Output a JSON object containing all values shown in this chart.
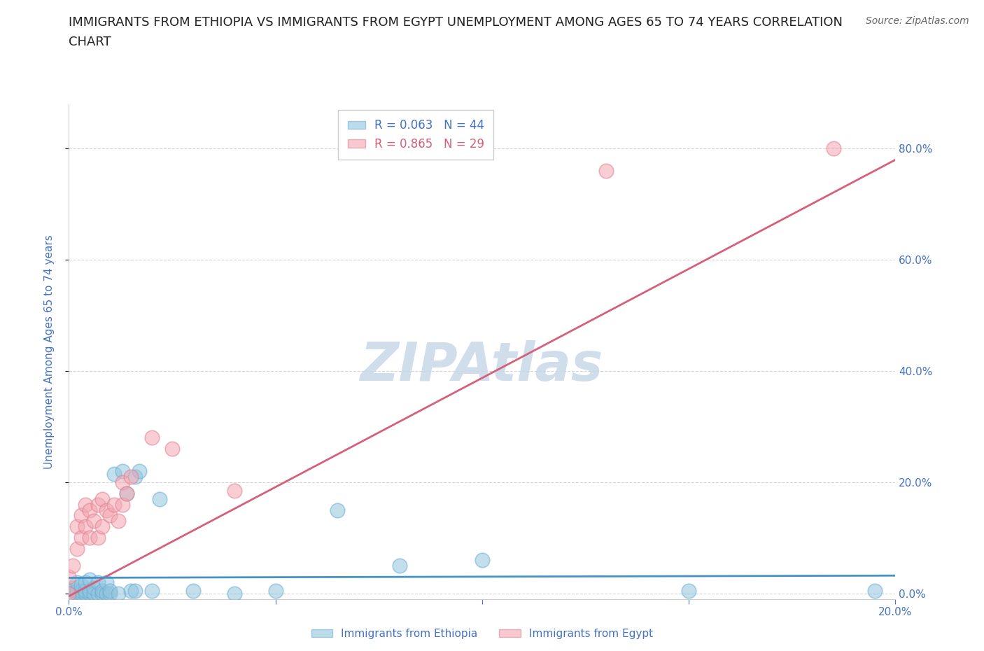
{
  "title_line1": "IMMIGRANTS FROM ETHIOPIA VS IMMIGRANTS FROM EGYPT UNEMPLOYMENT AMONG AGES 65 TO 74 YEARS CORRELATION",
  "title_line2": "CHART",
  "source_text": "Source: ZipAtlas.com",
  "ylabel": "Unemployment Among Ages 65 to 74 years",
  "xmin": 0.0,
  "xmax": 0.2,
  "ymin": -0.01,
  "ymax": 0.88,
  "ethiopia_color": "#92c5de",
  "ethiopia_edge": "#6baed6",
  "ethiopia_line_color": "#4393c3",
  "egypt_color": "#f4a6b2",
  "egypt_edge": "#e08090",
  "egypt_line_color": "#d6607a",
  "ethiopia_R": 0.063,
  "ethiopia_N": 44,
  "egypt_R": 0.865,
  "egypt_N": 29,
  "watermark": "ZIPAtlas",
  "watermark_color": "#c8d8e8",
  "bg_color": "#ffffff",
  "axis_color": "#4472c4",
  "title_fontsize": 13,
  "label_fontsize": 11,
  "tick_fontsize": 11,
  "ethiopia_x": [
    0.0,
    0.0,
    0.001,
    0.001,
    0.002,
    0.002,
    0.002,
    0.003,
    0.003,
    0.003,
    0.004,
    0.004,
    0.004,
    0.005,
    0.005,
    0.005,
    0.006,
    0.006,
    0.007,
    0.007,
    0.008,
    0.008,
    0.009,
    0.009,
    0.01,
    0.01,
    0.011,
    0.012,
    0.013,
    0.014,
    0.015,
    0.016,
    0.016,
    0.017,
    0.02,
    0.022,
    0.03,
    0.04,
    0.05,
    0.065,
    0.08,
    0.1,
    0.15,
    0.195
  ],
  "ethiopia_y": [
    0.0,
    0.005,
    0.0,
    0.01,
    0.0,
    0.005,
    0.02,
    0.0,
    0.005,
    0.015,
    0.0,
    0.005,
    0.02,
    0.0,
    0.005,
    0.025,
    0.0,
    0.01,
    0.0,
    0.02,
    0.0,
    0.005,
    0.0,
    0.02,
    0.0,
    0.005,
    0.215,
    0.0,
    0.22,
    0.18,
    0.005,
    0.005,
    0.21,
    0.22,
    0.005,
    0.17,
    0.005,
    0.0,
    0.005,
    0.15,
    0.05,
    0.06,
    0.005,
    0.005
  ],
  "egypt_x": [
    0.0,
    0.0,
    0.001,
    0.002,
    0.002,
    0.003,
    0.003,
    0.004,
    0.004,
    0.005,
    0.005,
    0.006,
    0.007,
    0.007,
    0.008,
    0.008,
    0.009,
    0.01,
    0.011,
    0.012,
    0.013,
    0.013,
    0.014,
    0.015,
    0.02,
    0.025,
    0.04,
    0.13,
    0.185
  ],
  "egypt_y": [
    0.0,
    0.03,
    0.05,
    0.08,
    0.12,
    0.1,
    0.14,
    0.12,
    0.16,
    0.1,
    0.15,
    0.13,
    0.1,
    0.16,
    0.12,
    0.17,
    0.15,
    0.14,
    0.16,
    0.13,
    0.16,
    0.2,
    0.18,
    0.21,
    0.28,
    0.26,
    0.185,
    0.76,
    0.8
  ],
  "egypt_line_x0": 0.0,
  "egypt_line_y0": -0.005,
  "egypt_line_x1": 0.2,
  "egypt_line_y1": 0.78,
  "ethiopia_line_x0": 0.0,
  "ethiopia_line_y0": 0.028,
  "ethiopia_line_x1": 0.2,
  "ethiopia_line_y1": 0.032
}
